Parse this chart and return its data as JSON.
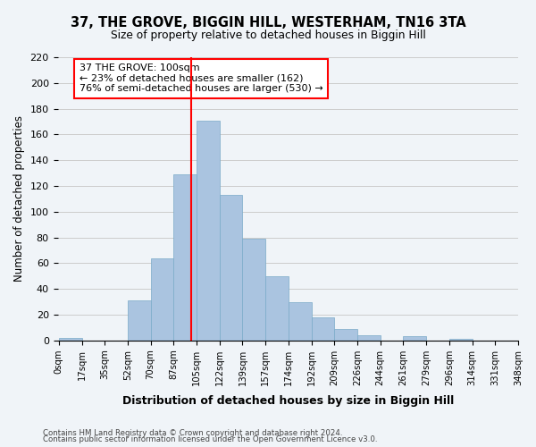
{
  "title1": "37, THE GROVE, BIGGIN HILL, WESTERHAM, TN16 3TA",
  "title2": "Size of property relative to detached houses in Biggin Hill",
  "xlabel": "Distribution of detached houses by size in Biggin Hill",
  "ylabel": "Number of detached properties",
  "bar_values": [
    2,
    0,
    0,
    31,
    64,
    129,
    171,
    113,
    79,
    50,
    30,
    18,
    9,
    4,
    0,
    3,
    0,
    1,
    0,
    0
  ],
  "bin_labels": [
    "0sqm",
    "17sqm",
    "35sqm",
    "52sqm",
    "70sqm",
    "87sqm",
    "105sqm",
    "122sqm",
    "139sqm",
    "157sqm",
    "174sqm",
    "192sqm",
    "209sqm",
    "226sqm",
    "244sqm",
    "261sqm",
    "279sqm",
    "296sqm",
    "314sqm",
    "331sqm",
    "348sqm"
  ],
  "bar_color": "#aac4e0",
  "bar_edge_color": "#7aaac8",
  "grid_color": "#cccccc",
  "vline_color": "red",
  "annotation_text": "37 THE GROVE: 100sqm\n← 23% of detached houses are smaller (162)\n76% of semi-detached houses are larger (530) →",
  "annotation_box_color": "white",
  "annotation_box_edge": "red",
  "ylim": [
    0,
    220
  ],
  "footnote1": "Contains HM Land Registry data © Crown copyright and database right 2024.",
  "footnote2": "Contains public sector information licensed under the Open Government Licence v3.0.",
  "bg_color": "#f0f4f8"
}
